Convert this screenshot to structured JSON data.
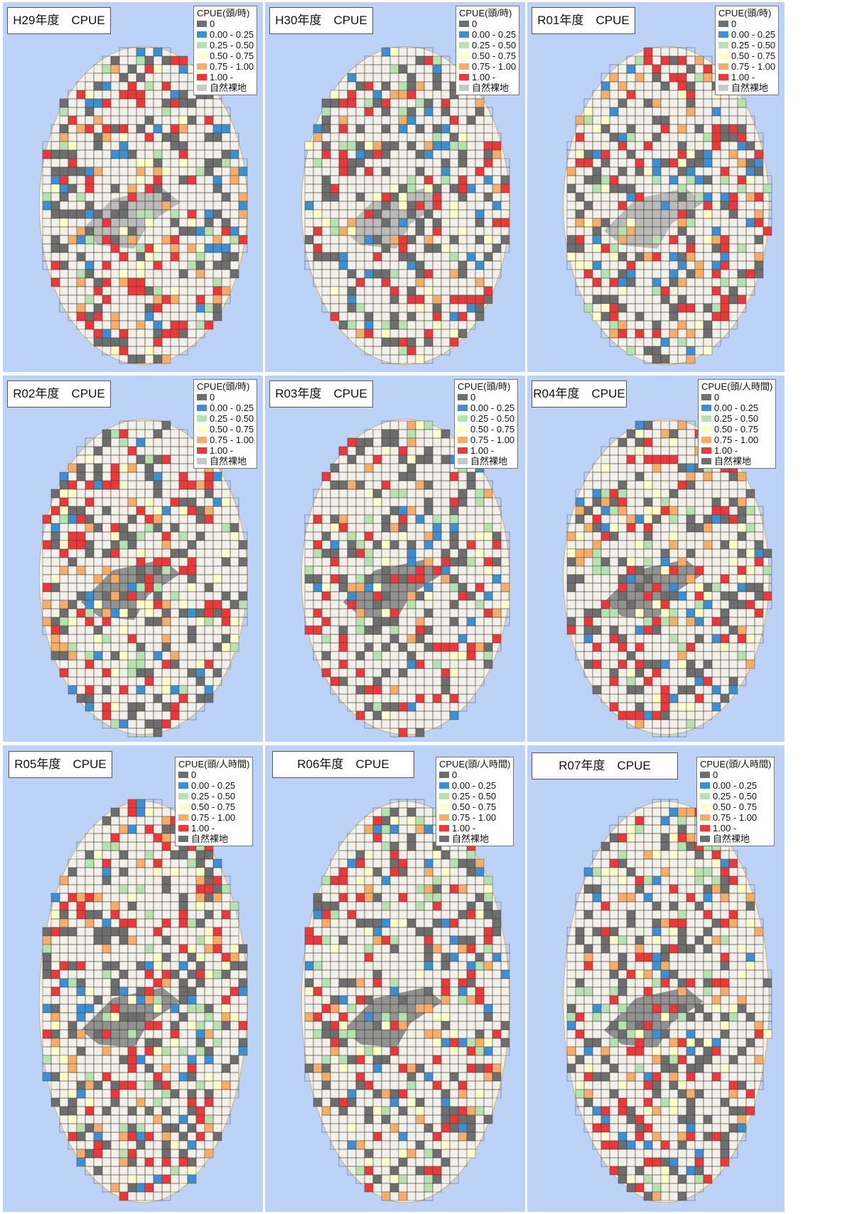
{
  "legend_colors": {
    "zero": "#6e6e6e",
    "c0": "#3e8fd0",
    "c1": "#b6e2b0",
    "c2": "#ffffc8",
    "c3": "#f6ad6a",
    "c4": "#e83a3a",
    "bare": "#c8c8c8"
  },
  "legend_labels": [
    "0",
    "0.00 - 0.25",
    "0.25 - 0.50",
    "0.50 - 0.75",
    "0.75 - 1.00",
    "1.00 -",
    "自然裸地"
  ],
  "panels": [
    {
      "title": "H29年度　CPUE",
      "unit": "CPUE(頭/時)"
    },
    {
      "title": "H30年度　CPUE",
      "unit": "CPUE(頭/時)"
    },
    {
      "title": "R01年度　CPUE",
      "unit": "CPUE(頭/時)"
    },
    {
      "title": "R02年度　CPUE",
      "unit": "CPUE(頭/時)"
    },
    {
      "title": "R03年度　CPUE",
      "unit": "CPUE(頭/時)"
    },
    {
      "title": "R04年度　CPUE",
      "unit": "CPUE(頭/人時間)"
    },
    {
      "title": "R05年度　CPUE",
      "unit": "CPUE(頭/人時間)"
    },
    {
      "title": "R06年度　CPUE",
      "unit": "CPUE(頭/人時間)"
    },
    {
      "title": "R07年度　CPUE",
      "unit": "CPUE(頭/人時間)"
    }
  ],
  "map_colors": {
    "sea": "#bcd2f7",
    "land": "#f2f0e8",
    "bare_area": "#8c8c8c",
    "grid_line": "#333333"
  }
}
